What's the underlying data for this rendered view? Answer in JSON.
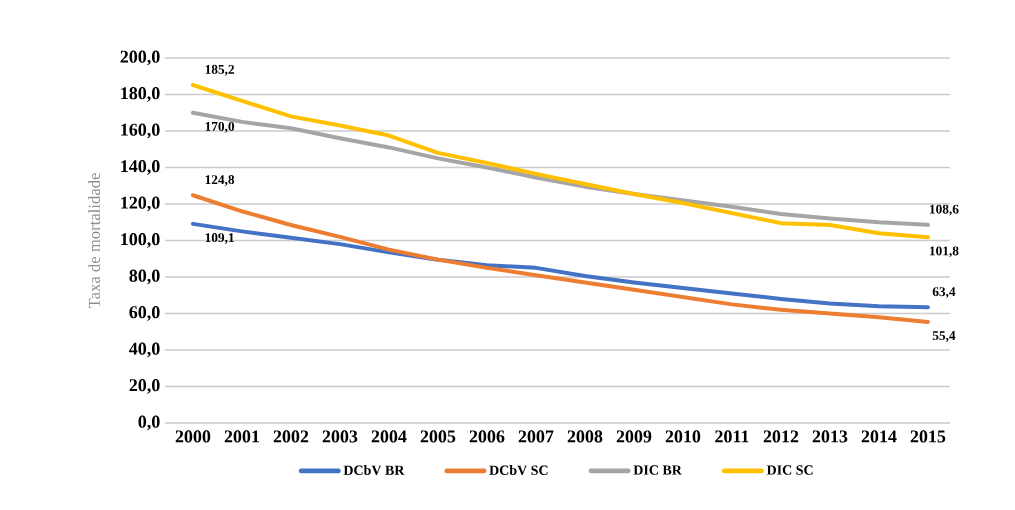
{
  "chart_data": {
    "type": "line",
    "ylabel": "Taxa de mortalidade",
    "categories": [
      "2000",
      "2001",
      "2002",
      "2003",
      "2004",
      "2005",
      "2006",
      "2007",
      "2008",
      "2009",
      "2010",
      "2011",
      "2012",
      "2013",
      "2014",
      "2015"
    ],
    "series": [
      {
        "name": "DCbV BR",
        "color": "#4472c4",
        "values": [
          109.1,
          105,
          101.5,
          98,
          93.5,
          89.5,
          86.5,
          85,
          80.5,
          77,
          74,
          71,
          68,
          65.5,
          64,
          63.4
        ]
      },
      {
        "name": "DCbV SC",
        "color": "#ed7d31",
        "values": [
          124.8,
          116,
          108.5,
          102,
          95,
          89.5,
          85,
          81,
          77,
          73,
          69,
          65,
          62,
          60,
          58,
          55.4
        ]
      },
      {
        "name": "DIC BR",
        "color": "#a5a5a5",
        "values": [
          170.0,
          165,
          161.5,
          156,
          151,
          145,
          140,
          134.5,
          129.5,
          125.5,
          122,
          118.5,
          114.5,
          112,
          110,
          108.6
        ]
      },
      {
        "name": "DIC SC",
        "color": "#ffc000",
        "values": [
          185.2,
          176.5,
          168,
          163,
          157.5,
          148,
          142.5,
          136.5,
          131,
          125.5,
          120.5,
          115,
          109.5,
          108.5,
          104,
          101.8
        ]
      }
    ],
    "ylim": [
      0,
      200
    ],
    "yticks": [
      {
        "value": 0,
        "label": "0,0"
      },
      {
        "value": 20,
        "label": "20,0"
      },
      {
        "value": 40,
        "label": "40,0"
      },
      {
        "value": 60,
        "label": "60,0"
      },
      {
        "value": 80,
        "label": "80,0"
      },
      {
        "value": 100,
        "label": "100,0"
      },
      {
        "value": 120,
        "label": "120,0"
      },
      {
        "value": 140,
        "label": "140,0"
      },
      {
        "value": 160,
        "label": "160,0"
      },
      {
        "value": 180,
        "label": "180,0"
      },
      {
        "value": 200,
        "label": "200,0"
      }
    ],
    "annotations": [
      {
        "text": "185,2",
        "x": "2000",
        "y": 185.2
      },
      {
        "text": "170,0",
        "x": "2000",
        "y": 170.0
      },
      {
        "text": "124,8",
        "x": "2000",
        "y": 124.8
      },
      {
        "text": "109,1",
        "x": "2000",
        "y": 109.1
      },
      {
        "text": "108,6",
        "x": "2015",
        "y": 108.6
      },
      {
        "text": "101,8",
        "x": "2015",
        "y": 101.8
      },
      {
        "text": "63,4",
        "x": "2015",
        "y": 63.4
      },
      {
        "text": "55,4",
        "x": "2015",
        "y": 55.4
      }
    ],
    "grid": "y",
    "legend": "bottom",
    "line_style": "solid"
  }
}
